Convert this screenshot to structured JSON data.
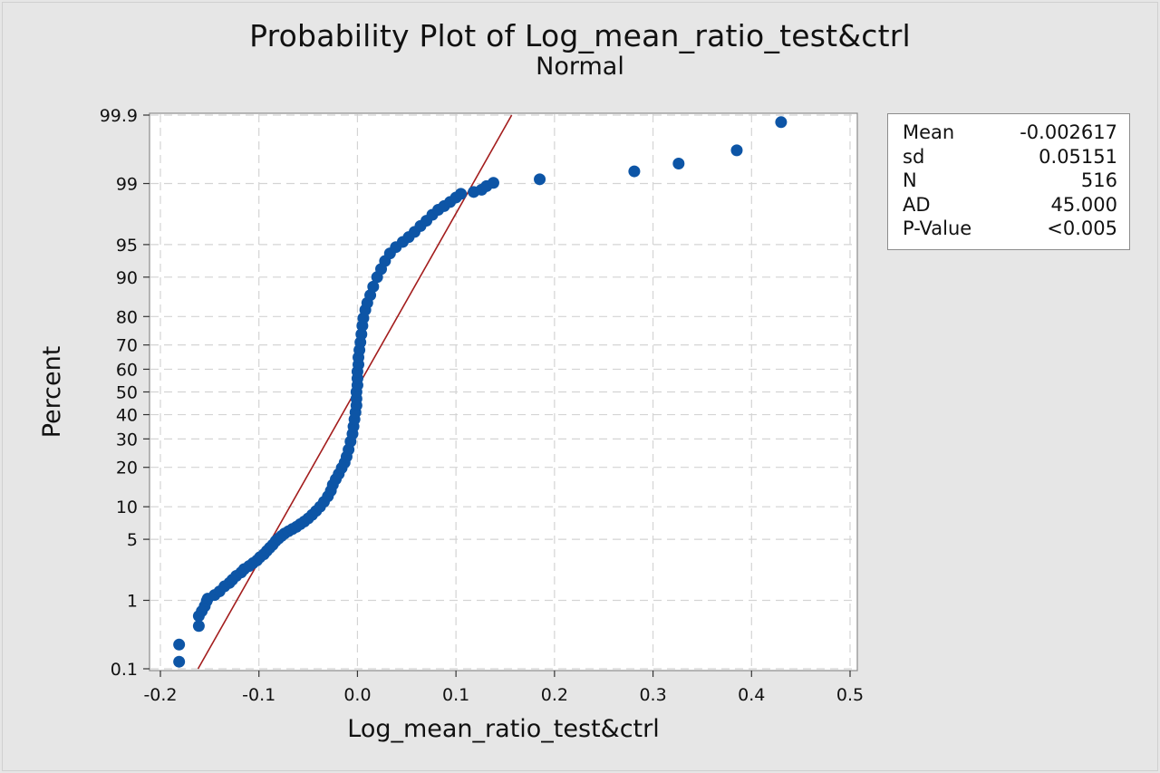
{
  "chart_data": {
    "type": "scatter",
    "title": "Probability Plot of Log_mean_ratio_test&ctrl",
    "subtitle": "Normal",
    "xlabel": "Log_mean_ratio_test&ctrl",
    "ylabel": "Percent",
    "xlim": [
      -0.2,
      0.5
    ],
    "ylim_percent": [
      0.1,
      99.9
    ],
    "y_scale": "normal-probability",
    "grid": true,
    "legend_position": "right",
    "x_ticks": [
      -0.2,
      -0.1,
      0.0,
      0.1,
      0.2,
      0.3,
      0.4,
      0.5
    ],
    "x_tick_labels": [
      "-0.2",
      "-0.1",
      "0.0",
      "0.1",
      "0.2",
      "0.3",
      "0.4",
      "0.5"
    ],
    "y_ticks": [
      0.1,
      1,
      5,
      10,
      20,
      30,
      40,
      50,
      60,
      70,
      80,
      90,
      95,
      99,
      99.9
    ],
    "y_tick_labels": [
      "0.1",
      "1",
      "5",
      "10",
      "20",
      "30",
      "40",
      "50",
      "60",
      "70",
      "80",
      "90",
      "95",
      "99",
      "99.9"
    ],
    "fit_line": {
      "mean": -0.002617,
      "sd": 0.05151,
      "color": "#a31d1d"
    },
    "point_color": "#0d55a6",
    "points": [
      [
        -0.181,
        0.13
      ],
      [
        -0.181,
        0.24
      ],
      [
        -0.161,
        0.45
      ],
      [
        -0.161,
        0.62
      ],
      [
        -0.158,
        0.72
      ],
      [
        -0.155,
        0.84
      ],
      [
        -0.153,
        0.98
      ],
      [
        -0.152,
        1.05
      ],
      [
        -0.145,
        1.17
      ],
      [
        -0.14,
        1.3
      ],
      [
        -0.135,
        1.5
      ],
      [
        -0.13,
        1.65
      ],
      [
        -0.127,
        1.8
      ],
      [
        -0.123,
        2.0
      ],
      [
        -0.118,
        2.2
      ],
      [
        -0.115,
        2.4
      ],
      [
        -0.11,
        2.6
      ],
      [
        -0.106,
        2.8
      ],
      [
        -0.102,
        3.0
      ],
      [
        -0.099,
        3.25
      ],
      [
        -0.095,
        3.5
      ],
      [
        -0.092,
        3.8
      ],
      [
        -0.089,
        4.1
      ],
      [
        -0.086,
        4.4
      ],
      [
        -0.083,
        4.8
      ],
      [
        -0.08,
        5.1
      ],
      [
        -0.077,
        5.4
      ],
      [
        -0.074,
        5.7
      ],
      [
        -0.07,
        6.0
      ],
      [
        -0.066,
        6.3
      ],
      [
        -0.062,
        6.6
      ],
      [
        -0.058,
        7.0
      ],
      [
        -0.054,
        7.4
      ],
      [
        -0.05,
        7.9
      ],
      [
        -0.046,
        8.5
      ],
      [
        -0.042,
        9.2
      ],
      [
        -0.038,
        10.0
      ],
      [
        -0.034,
        11.0
      ],
      [
        -0.03,
        12.2
      ],
      [
        -0.027,
        13.5
      ],
      [
        -0.025,
        15.0
      ],
      [
        -0.022,
        16.5
      ],
      [
        -0.019,
        18.0
      ],
      [
        -0.016,
        19.8
      ],
      [
        -0.013,
        21.5
      ],
      [
        -0.011,
        23.5
      ],
      [
        -0.009,
        26.0
      ],
      [
        -0.007,
        29.0
      ],
      [
        -0.005,
        32.0
      ],
      [
        -0.004,
        35.0
      ],
      [
        -0.003,
        38.0
      ],
      [
        -0.002,
        41.0
      ],
      [
        -0.001,
        44.0
      ],
      [
        -0.001,
        47.0
      ],
      [
        -0.001,
        50.0
      ],
      [
        0.0,
        53.0
      ],
      [
        0.0,
        56.0
      ],
      [
        0.0,
        59.0
      ],
      [
        0.001,
        62.0
      ],
      [
        0.001,
        65.0
      ],
      [
        0.002,
        68.0
      ],
      [
        0.003,
        71.0
      ],
      [
        0.004,
        74.0
      ],
      [
        0.005,
        77.0
      ],
      [
        0.006,
        79.5
      ],
      [
        0.008,
        82.0
      ],
      [
        0.01,
        84.0
      ],
      [
        0.013,
        86.0
      ],
      [
        0.016,
        88.0
      ],
      [
        0.02,
        90.0
      ],
      [
        0.024,
        91.5
      ],
      [
        0.028,
        92.8
      ],
      [
        0.033,
        93.9
      ],
      [
        0.039,
        94.7
      ],
      [
        0.046,
        95.3
      ],
      [
        0.052,
        95.8
      ],
      [
        0.058,
        96.3
      ],
      [
        0.064,
        96.8
      ],
      [
        0.07,
        97.2
      ],
      [
        0.076,
        97.6
      ],
      [
        0.082,
        97.9
      ],
      [
        0.088,
        98.1
      ],
      [
        0.094,
        98.3
      ],
      [
        0.1,
        98.5
      ],
      [
        0.105,
        98.65
      ],
      [
        0.118,
        98.72
      ],
      [
        0.126,
        98.8
      ],
      [
        0.131,
        98.92
      ],
      [
        0.138,
        99.02
      ],
      [
        0.185,
        99.12
      ],
      [
        0.281,
        99.31
      ],
      [
        0.326,
        99.46
      ],
      [
        0.385,
        99.65
      ],
      [
        0.43,
        99.87
      ]
    ]
  },
  "legend": {
    "rows": [
      {
        "label": "Mean",
        "value": "-0.002617"
      },
      {
        "label": "sd",
        "value": "0.05151"
      },
      {
        "label": "N",
        "value": "516"
      },
      {
        "label": "AD",
        "value": "45.000"
      },
      {
        "label": "P-Value",
        "value": "<0.005"
      }
    ]
  }
}
